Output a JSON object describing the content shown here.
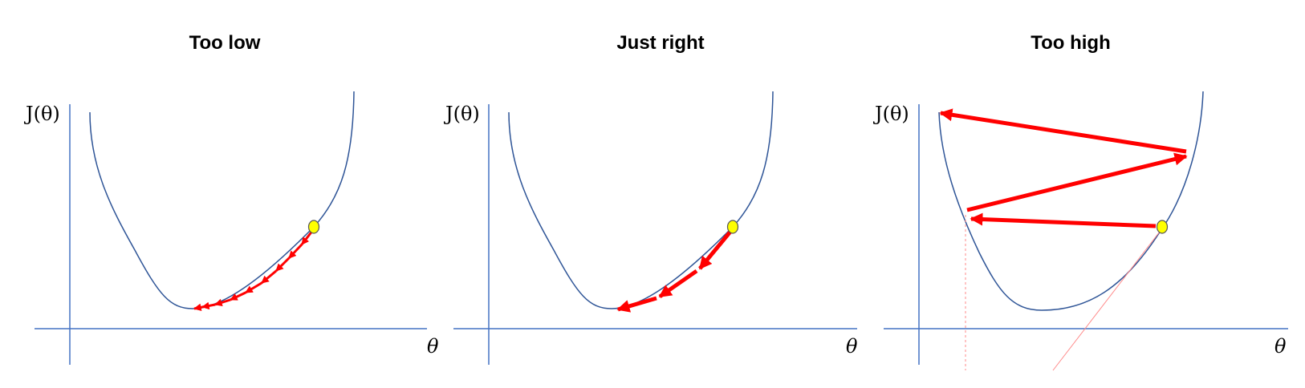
{
  "panels": [
    {
      "id": "too-low",
      "title": "Too low",
      "ylabel": "J(θ)",
      "xlabel": "θ",
      "steps_shown": 9
    },
    {
      "id": "just-right",
      "title": "Just right",
      "ylabel": "J(θ)",
      "xlabel": "θ",
      "steps_shown": 3
    },
    {
      "id": "too-high",
      "title": "Too high",
      "ylabel": "J(θ)",
      "xlabel": "θ",
      "steps_shown": 3
    }
  ],
  "colors": {
    "axis": "#4472C4",
    "curve": "#2F5597",
    "step_arrow": "#FF0000",
    "start_point_fill": "#FFFF00",
    "start_point_stroke": "#555555",
    "tangent_line": "#FF8A8A"
  }
}
